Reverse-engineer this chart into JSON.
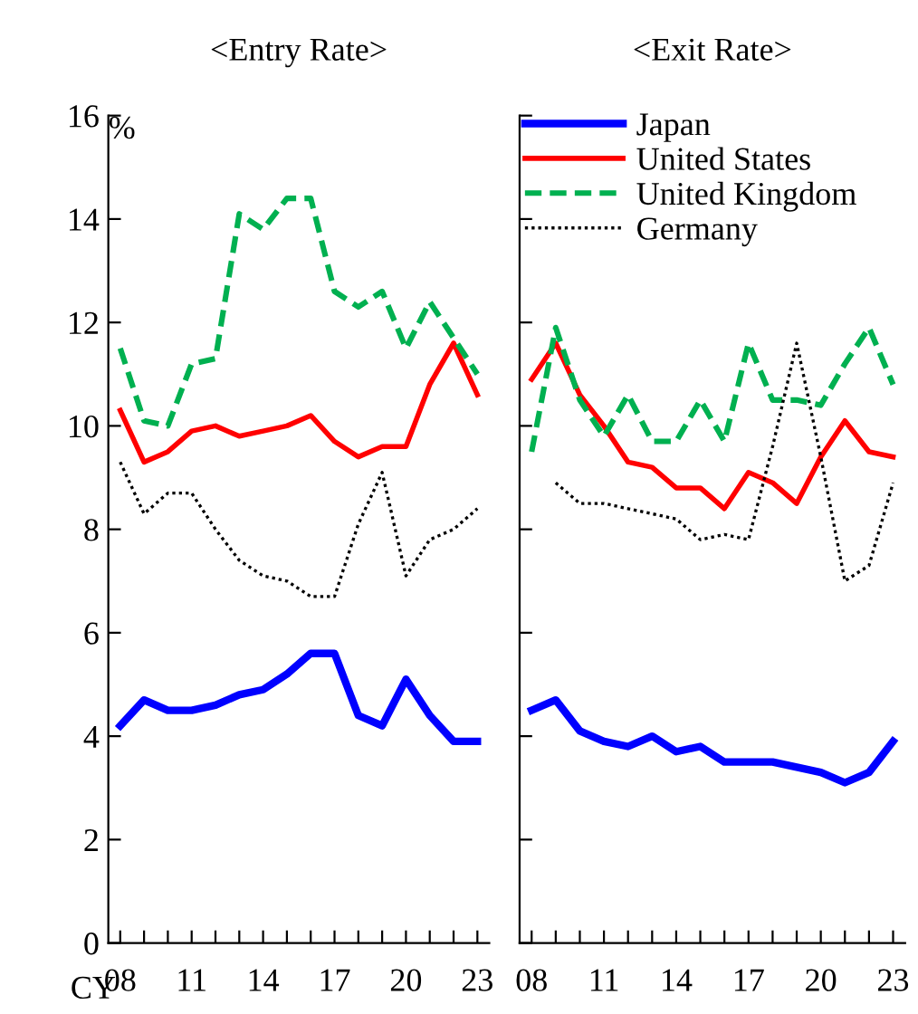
{
  "chart_data": [
    {
      "type": "line",
      "title": "<Entry Rate>",
      "annotations": [
        "%",
        "CY"
      ],
      "x": [
        2008,
        2009,
        2010,
        2011,
        2012,
        2013,
        2014,
        2015,
        2016,
        2017,
        2018,
        2019,
        2020,
        2021,
        2022,
        2023
      ],
      "series": [
        {
          "color": "#0000ff",
          "line_style": "solid",
          "values": [
            4.2,
            4.7,
            4.5,
            4.5,
            4.6,
            4.8,
            4.9,
            5.2,
            5.6,
            5.6,
            4.4,
            4.2,
            5.1,
            4.4,
            3.9,
            3.9
          ]
        },
        {
          "color": "#ff0000",
          "line_style": "solid",
          "values": [
            10.3,
            9.3,
            9.5,
            9.9,
            10.0,
            9.8,
            9.9,
            10.0,
            10.2,
            9.7,
            9.4,
            9.6,
            9.6,
            10.8,
            11.6,
            10.6
          ]
        },
        {
          "color": "#00b050",
          "line_style": "dashed",
          "values": [
            11.5,
            10.1,
            10.0,
            11.2,
            11.3,
            14.1,
            13.8,
            14.4,
            14.4,
            12.6,
            12.3,
            12.6,
            11.5,
            12.4,
            11.7,
            11.0
          ]
        },
        {
          "color": "#000000",
          "line_style": "dotted",
          "values": [
            9.3,
            8.3,
            8.7,
            8.7,
            8.0,
            7.4,
            7.1,
            7.0,
            6.7,
            6.7,
            8.1,
            9.1,
            7.1,
            7.8,
            8.0,
            8.4
          ]
        }
      ],
      "xlim": [
        2007.5,
        2023.5
      ],
      "xticks": [
        {
          "value": 2008,
          "label": "08"
        },
        {
          "value": 2009,
          "label": null
        },
        {
          "value": 2010,
          "label": null
        },
        {
          "value": 2011,
          "label": "11"
        },
        {
          "value": 2012,
          "label": null
        },
        {
          "value": 2013,
          "label": null
        },
        {
          "value": 2014,
          "label": "14"
        },
        {
          "value": 2015,
          "label": null
        },
        {
          "value": 2016,
          "label": null
        },
        {
          "value": 2017,
          "label": "17"
        },
        {
          "value": 2018,
          "label": null
        },
        {
          "value": 2019,
          "label": null
        },
        {
          "value": 2020,
          "label": "20"
        },
        {
          "value": 2021,
          "label": null
        },
        {
          "value": 2022,
          "label": null
        },
        {
          "value": 2023,
          "label": "23"
        }
      ],
      "ylim": [
        0,
        16
      ],
      "yticks": [
        0,
        2,
        4,
        6,
        8,
        10,
        12,
        14,
        16
      ],
      "grid": false,
      "legend": false,
      "marker": "none"
    },
    {
      "type": "line",
      "title": "<Exit Rate>",
      "x": [
        2008,
        2009,
        2010,
        2011,
        2012,
        2013,
        2014,
        2015,
        2016,
        2017,
        2018,
        2019,
        2020,
        2021,
        2022,
        2023
      ],
      "series": [
        {
          "name": "Japan",
          "color": "#0000ff",
          "line_style": "solid",
          "values": [
            4.5,
            4.7,
            4.1,
            3.9,
            3.8,
            4.0,
            3.7,
            3.8,
            3.5,
            3.5,
            3.5,
            3.4,
            3.3,
            3.1,
            3.3,
            3.9
          ]
        },
        {
          "name": "United States",
          "color": "#ff0000",
          "line_style": "solid",
          "values": [
            10.9,
            11.6,
            10.6,
            10.0,
            9.3,
            9.2,
            8.8,
            8.8,
            8.4,
            9.1,
            8.9,
            8.5,
            9.4,
            10.1,
            9.5,
            9.4
          ]
        },
        {
          "name": "United Kingdom",
          "color": "#00b050",
          "line_style": "dashed",
          "values": [
            9.5,
            11.9,
            10.5,
            9.8,
            10.6,
            9.7,
            9.7,
            10.5,
            9.7,
            11.6,
            10.5,
            10.5,
            10.4,
            11.2,
            11.9,
            10.8
          ]
        },
        {
          "name": "Germany",
          "color": "#000000",
          "line_style": "dotted",
          "values": [
            null,
            8.9,
            8.5,
            8.5,
            8.4,
            8.3,
            8.2,
            7.8,
            7.9,
            7.8,
            9.6,
            11.6,
            9.4,
            7.0,
            7.3,
            8.9
          ]
        }
      ],
      "xlim": [
        2007.5,
        2023.5
      ],
      "xticks": [
        {
          "value": 2008,
          "label": "08"
        },
        {
          "value": 2009,
          "label": null
        },
        {
          "value": 2010,
          "label": null
        },
        {
          "value": 2011,
          "label": "11"
        },
        {
          "value": 2012,
          "label": null
        },
        {
          "value": 2013,
          "label": null
        },
        {
          "value": 2014,
          "label": "14"
        },
        {
          "value": 2015,
          "label": null
        },
        {
          "value": 2016,
          "label": null
        },
        {
          "value": 2017,
          "label": "17"
        },
        {
          "value": 2018,
          "label": null
        },
        {
          "value": 2019,
          "label": null
        },
        {
          "value": 2020,
          "label": "20"
        },
        {
          "value": 2021,
          "label": null
        },
        {
          "value": 2022,
          "label": null
        },
        {
          "value": 2023,
          "label": "23"
        }
      ],
      "ylim": [
        0,
        16
      ],
      "yticks": [
        0,
        2,
        4,
        6,
        8,
        10,
        12,
        14,
        16
      ],
      "tick_labels": "x",
      "grid": false,
      "legend": "top",
      "marker": "none"
    }
  ]
}
